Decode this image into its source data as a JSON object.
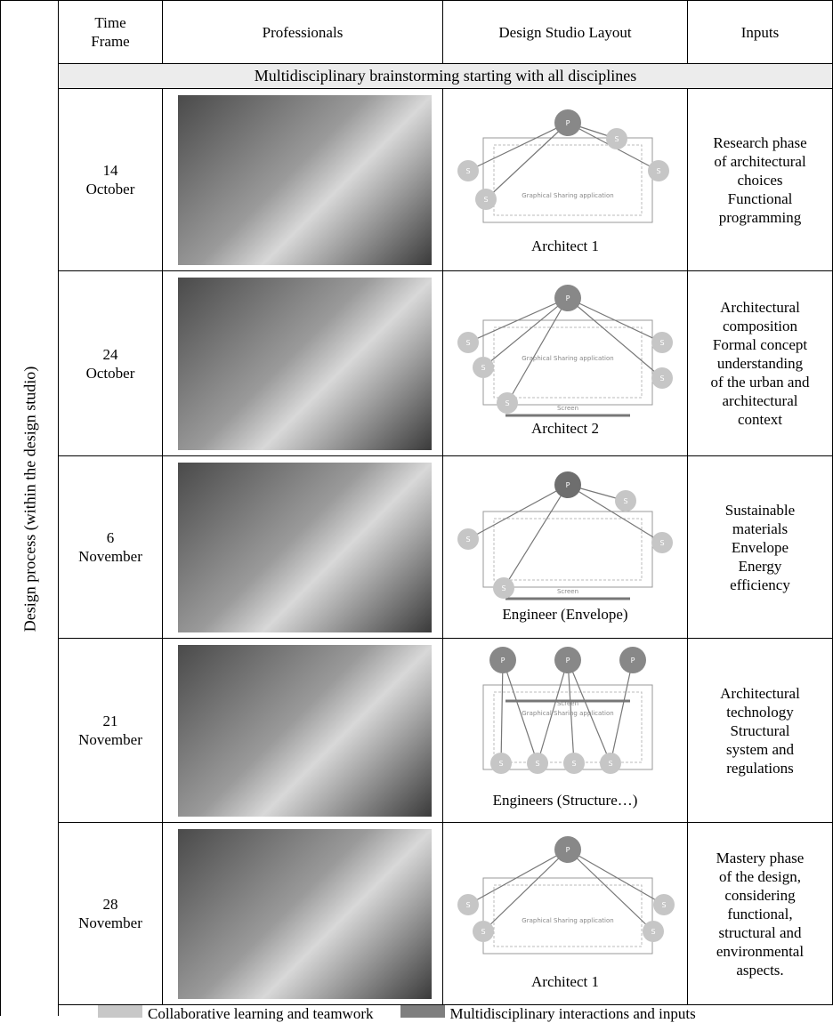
{
  "side_label": "Design process (within the design studio)",
  "header": [
    "Time Frame",
    "Professionals",
    "Design Studio Layout",
    "Inputs"
  ],
  "section": "Multidisciplinary brainstorming starting with all disciplines",
  "rows": [
    {
      "date": [
        "14",
        "October"
      ],
      "diagram": {
        "nodes": [
          "P",
          "S",
          "S",
          "S",
          "S"
        ],
        "app_label": "Graphical Sharing application",
        "caption": "Architect 1"
      },
      "inputs": [
        "Research phase",
        "of architectural",
        "choices",
        "Functional",
        "programming"
      ]
    },
    {
      "date": [
        "24",
        "October"
      ],
      "diagram": {
        "nodes": [
          "P",
          "S",
          "S",
          "S",
          "S",
          "S"
        ],
        "app_label": "Graphical Sharing application",
        "screen_label": "Screen",
        "caption": "Architect 2"
      },
      "inputs": [
        "Architectural",
        "composition",
        "Formal concept",
        "understanding",
        "of the urban and",
        "architectural",
        "context"
      ]
    },
    {
      "date": [
        "6",
        "November"
      ],
      "diagram": {
        "nodes": [
          "P",
          "S",
          "S",
          "S",
          "S"
        ],
        "screen_label": "Screen",
        "caption": "Engineer (Envelope)"
      },
      "inputs": [
        "Sustainable",
        "materials",
        "Envelope",
        "Energy",
        "efficiency"
      ]
    },
    {
      "date": [
        "21",
        "November"
      ],
      "diagram": {
        "nodes": [
          "P",
          "P",
          "P",
          "S",
          "S",
          "S",
          "S"
        ],
        "app_label": "Graphical Sharing application",
        "screen_label": "Screen",
        "caption": "Engineers (Structure…)"
      },
      "inputs": [
        "Architectural",
        "technology",
        "Structural",
        "system and",
        "regulations"
      ]
    },
    {
      "date": [
        "28",
        "November"
      ],
      "diagram": {
        "nodes": [
          "P",
          "S",
          "S",
          "S",
          "S"
        ],
        "app_label": "Graphical Sharing application",
        "caption": "Architect 1"
      },
      "inputs": [
        "Mastery phase",
        "of the design,",
        "considering",
        "functional,",
        "structural and",
        "environmental",
        "aspects."
      ]
    }
  ],
  "legend": [
    "Collaborative learning and teamwork",
    "Multidisciplinary interactions and inputs"
  ]
}
